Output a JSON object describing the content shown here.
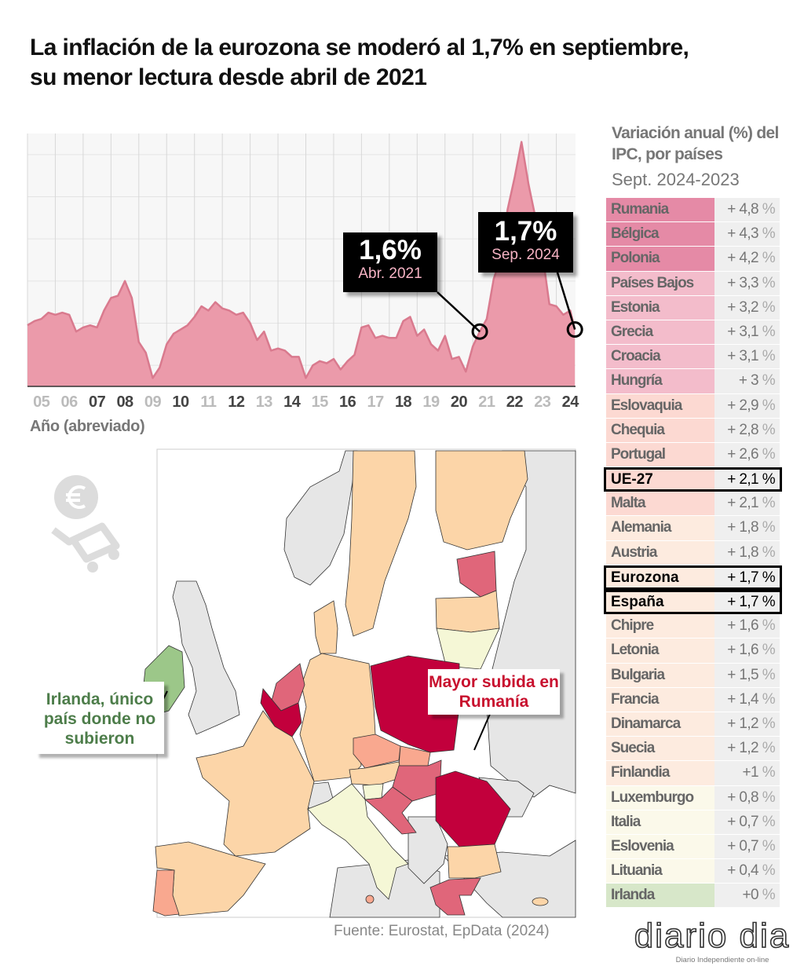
{
  "title": "La inflación de la eurozona se moderó al 1,7% en septiembre, su menor lectura desde abril de 2021",
  "chart_data": {
    "type": "area",
    "title": "La inflación de la eurozona se moderó al 1,7% en septiembre, su menor lectura desde abril de 2021",
    "xlabel": "Año (abreviado)",
    "ylabel": "",
    "ylim": [
      -1,
      11
    ],
    "xlim": [
      "2005-01",
      "2024-09"
    ],
    "grid": true,
    "x_ticks": [
      "05",
      "06",
      "07",
      "08",
      "09",
      "10",
      "11",
      "12",
      "13",
      "14",
      "15",
      "16",
      "17",
      "18",
      "19",
      "20",
      "21",
      "22",
      "23",
      "24"
    ],
    "series": [
      {
        "points": [
          [
            "2005-01",
            1.9
          ],
          [
            "2005-04",
            2.1
          ],
          [
            "2005-07",
            2.2
          ],
          [
            "2005-10",
            2.5
          ],
          [
            "2006-01",
            2.4
          ],
          [
            "2006-04",
            2.5
          ],
          [
            "2006-07",
            2.4
          ],
          [
            "2006-10",
            1.6
          ],
          [
            "2007-01",
            1.8
          ],
          [
            "2007-04",
            1.9
          ],
          [
            "2007-07",
            1.8
          ],
          [
            "2007-10",
            2.6
          ],
          [
            "2008-01",
            3.2
          ],
          [
            "2008-04",
            3.3
          ],
          [
            "2008-07",
            4.0
          ],
          [
            "2008-10",
            3.2
          ],
          [
            "2009-01",
            1.1
          ],
          [
            "2009-04",
            0.6
          ],
          [
            "2009-07",
            -0.6
          ],
          [
            "2009-10",
            -0.1
          ],
          [
            "2010-01",
            1.0
          ],
          [
            "2010-04",
            1.5
          ],
          [
            "2010-07",
            1.7
          ],
          [
            "2010-10",
            1.9
          ],
          [
            "2011-01",
            2.3
          ],
          [
            "2011-04",
            2.8
          ],
          [
            "2011-07",
            2.6
          ],
          [
            "2011-10",
            3.0
          ],
          [
            "2012-01",
            2.7
          ],
          [
            "2012-04",
            2.6
          ],
          [
            "2012-07",
            2.4
          ],
          [
            "2012-10",
            2.5
          ],
          [
            "2013-01",
            2.0
          ],
          [
            "2013-04",
            1.2
          ],
          [
            "2013-07",
            1.6
          ],
          [
            "2013-10",
            0.7
          ],
          [
            "2014-01",
            0.8
          ],
          [
            "2014-04",
            0.7
          ],
          [
            "2014-07",
            0.4
          ],
          [
            "2014-10",
            0.4
          ],
          [
            "2015-01",
            -0.6
          ],
          [
            "2015-04",
            0.0
          ],
          [
            "2015-07",
            0.2
          ],
          [
            "2015-10",
            0.1
          ],
          [
            "2016-01",
            0.3
          ],
          [
            "2016-04",
            -0.2
          ],
          [
            "2016-07",
            0.2
          ],
          [
            "2016-10",
            0.5
          ],
          [
            "2017-01",
            1.8
          ],
          [
            "2017-04",
            1.9
          ],
          [
            "2017-07",
            1.3
          ],
          [
            "2017-10",
            1.4
          ],
          [
            "2018-01",
            1.3
          ],
          [
            "2018-04",
            1.3
          ],
          [
            "2018-07",
            2.1
          ],
          [
            "2018-10",
            2.3
          ],
          [
            "2019-01",
            1.4
          ],
          [
            "2019-04",
            1.7
          ],
          [
            "2019-07",
            1.0
          ],
          [
            "2019-10",
            0.7
          ],
          [
            "2020-01",
            1.4
          ],
          [
            "2020-04",
            0.3
          ],
          [
            "2020-07",
            0.4
          ],
          [
            "2020-10",
            -0.3
          ],
          [
            "2021-01",
            0.9
          ],
          [
            "2021-04",
            1.6
          ],
          [
            "2021-07",
            2.2
          ],
          [
            "2021-10",
            4.1
          ],
          [
            "2022-01",
            5.1
          ],
          [
            "2022-04",
            7.4
          ],
          [
            "2022-07",
            8.9
          ],
          [
            "2022-10",
            10.6
          ],
          [
            "2023-01",
            8.6
          ],
          [
            "2023-04",
            7.0
          ],
          [
            "2023-07",
            5.3
          ],
          [
            "2023-10",
            2.9
          ],
          [
            "2024-01",
            2.8
          ],
          [
            "2024-04",
            2.4
          ],
          [
            "2024-07",
            2.6
          ],
          [
            "2024-09",
            1.7
          ]
        ]
      }
    ],
    "annotations": [
      {
        "value": "1,6%",
        "date_label": "Abr. 2021",
        "x": "2021-04",
        "y": 1.6
      },
      {
        "value": "1,7%",
        "date_label": "Sep. 2024",
        "x": "2024-09",
        "y": 1.7
      }
    ],
    "colors": {
      "fill": "#eb9aaa",
      "line": "#d97a8e",
      "grid": "#d8d8d8",
      "annotation_bg": "#000000",
      "annotation_date": "#f6b3c4"
    }
  },
  "table": {
    "title": "Variación anual (%) del IPC, por países",
    "subtitle": "Sept. 2024-2023",
    "rows": [
      {
        "name": "Rumania",
        "value": "+ 4,8",
        "unit": "%",
        "color": "#e58aa6"
      },
      {
        "name": "Bélgica",
        "value": "+ 4,3",
        "unit": "%",
        "color": "#e58aa6"
      },
      {
        "name": "Polonia",
        "value": "+ 4,2",
        "unit": "%",
        "color": "#e58aa6"
      },
      {
        "name": "Países Bajos",
        "value": "+ 3,3",
        "unit": "%",
        "color": "#f3bccb"
      },
      {
        "name": "Estonia",
        "value": "+ 3,2",
        "unit": "%",
        "color": "#f3bccb"
      },
      {
        "name": "Grecia",
        "value": "+ 3,1",
        "unit": "%",
        "color": "#f3bccb"
      },
      {
        "name": "Croacia",
        "value": "+ 3,1",
        "unit": "%",
        "color": "#f3bccb"
      },
      {
        "name": "Hungría",
        "value": "+ 3",
        "unit": "%",
        "color": "#f3bccb"
      },
      {
        "name": "Eslovaquia",
        "value": "+ 2,9",
        "unit": "%",
        "color": "#fcd9d2"
      },
      {
        "name": "Chequia",
        "value": "+ 2,8",
        "unit": "%",
        "color": "#fcd9d2"
      },
      {
        "name": "Portugal",
        "value": "+ 2,6",
        "unit": "%",
        "color": "#fcd9d2"
      },
      {
        "name": "UE-27",
        "value": "+ 2,1",
        "unit": "%",
        "color": "#fcd9d2",
        "highlight": true
      },
      {
        "name": "Malta",
        "value": "+ 2,1",
        "unit": "%",
        "color": "#fcd9d2"
      },
      {
        "name": "Alemania",
        "value": "+ 1,8",
        "unit": "%",
        "color": "#fdebdf"
      },
      {
        "name": "Austria",
        "value": "+ 1,8",
        "unit": "%",
        "color": "#fdebdf"
      },
      {
        "name": "Eurozona",
        "value": "+ 1,7",
        "unit": "%",
        "color": "#fdebdf",
        "highlight": true
      },
      {
        "name": "España",
        "value": "+ 1,7",
        "unit": "%",
        "color": "#fdebdf",
        "highlight": true
      },
      {
        "name": "Chipre",
        "value": "+ 1,6",
        "unit": "%",
        "color": "#fdebdf"
      },
      {
        "name": "Letonia",
        "value": "+ 1,6",
        "unit": "%",
        "color": "#fdebdf"
      },
      {
        "name": "Bulgaria",
        "value": "+ 1,5",
        "unit": "%",
        "color": "#fdebdf"
      },
      {
        "name": "Francia",
        "value": "+ 1,4",
        "unit": "%",
        "color": "#fdebdf"
      },
      {
        "name": "Dinamarca",
        "value": "+ 1,2",
        "unit": "%",
        "color": "#fdebdf"
      },
      {
        "name": "Suecia",
        "value": "+ 1,2",
        "unit": "%",
        "color": "#fdebdf"
      },
      {
        "name": "Finlandia",
        "value": "+1",
        "unit": "%",
        "color": "#fdebdf"
      },
      {
        "name": "Luxemburgo",
        "value": "+ 0,8",
        "unit": "%",
        "color": "#fbf9ea"
      },
      {
        "name": "Italia",
        "value": "+ 0,7",
        "unit": "%",
        "color": "#fbf9ea"
      },
      {
        "name": "Eslovenia",
        "value": "+ 0,7",
        "unit": "%",
        "color": "#fbf9ea"
      },
      {
        "name": "Lituania",
        "value": "+ 0,4",
        "unit": "%",
        "color": "#fbf9ea"
      },
      {
        "name": "Irlanda",
        "value": "+0",
        "unit": "%",
        "color": "#d7e7c9"
      }
    ]
  },
  "map": {
    "callout_ireland": "Irlanda, único país donde no subieron",
    "callout_romania": "Mayor subida en Rumanía",
    "colors": {
      "ireland_text": "#4d7d4a",
      "romania_text": "#c8102e",
      "non_eu": "#e6e6e6",
      "highest": "#c2003c",
      "high": "#e0667a",
      "mid": "#f9a88f",
      "low": "#fcd5a8",
      "lowest": "#f5f7d6",
      "zero": "#9cc789"
    }
  },
  "icon": "euro-shopping-cart-icon",
  "source": "Fuente: Eurostat, EpData (2024)",
  "logo": {
    "text": "diario dia",
    "tagline": "Diario Independiente on-line"
  }
}
